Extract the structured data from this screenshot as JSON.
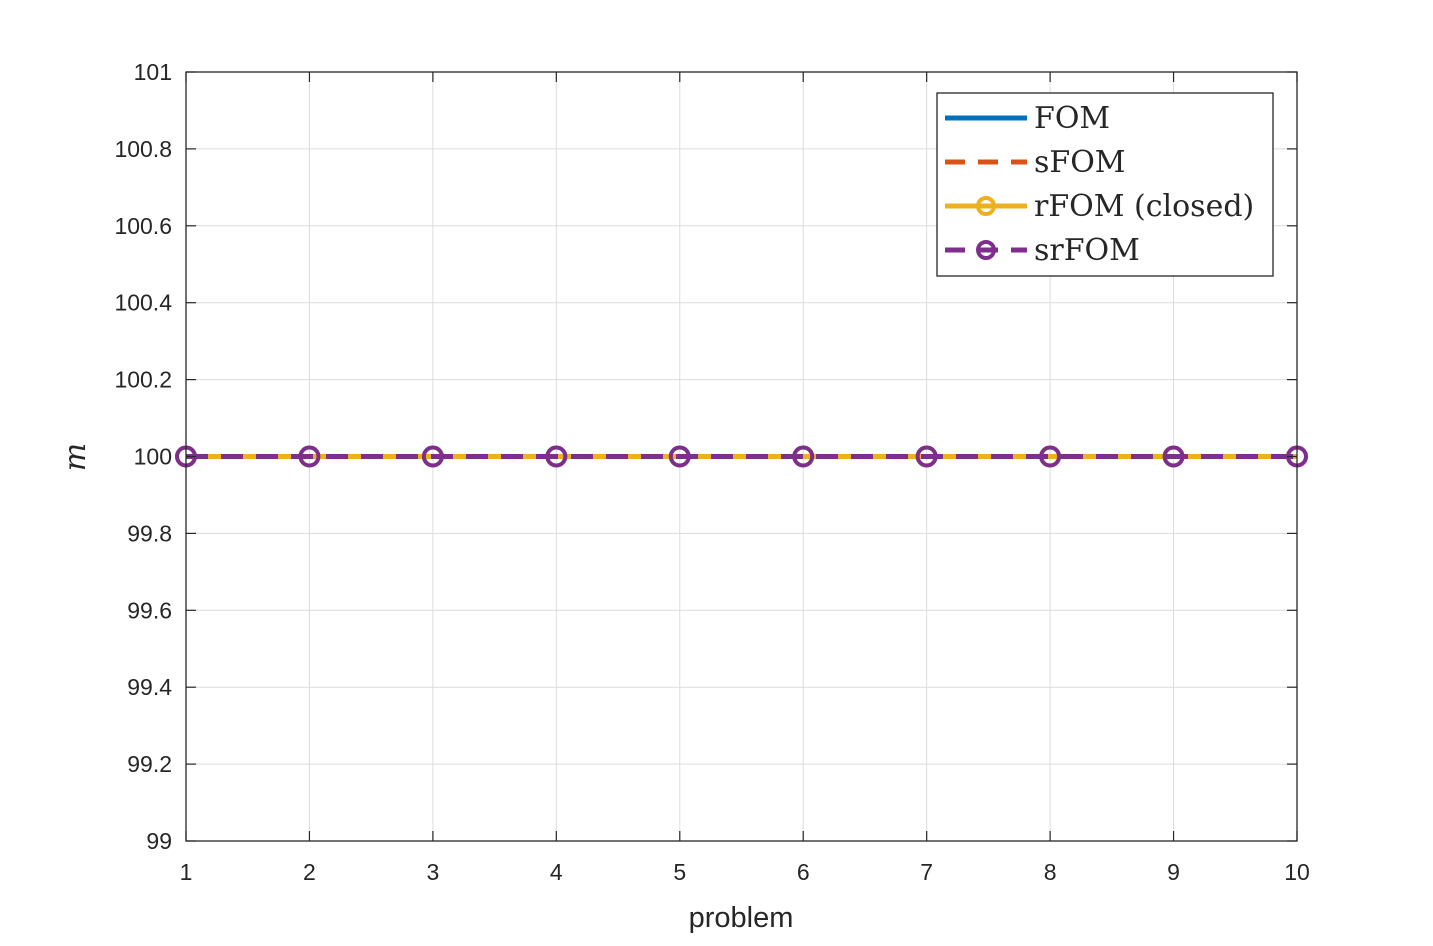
{
  "chart_data": {
    "type": "line",
    "title": "",
    "xlabel": "problem",
    "ylabel": "m",
    "xlim": [
      1,
      10
    ],
    "ylim": [
      99,
      101
    ],
    "x": [
      1,
      2,
      3,
      4,
      5,
      6,
      7,
      8,
      9,
      10
    ],
    "xticks": [
      "1",
      "2",
      "3",
      "4",
      "5",
      "6",
      "7",
      "8",
      "9",
      "10"
    ],
    "yticks": [
      "99",
      "99.2",
      "99.4",
      "99.6",
      "99.8",
      "100",
      "100.2",
      "100.4",
      "100.6",
      "100.8",
      "101"
    ],
    "grid": true,
    "legend_position": "top-right",
    "series": [
      {
        "name": "FOM",
        "values": [
          100,
          100,
          100,
          100,
          100,
          100,
          100,
          100,
          100,
          100
        ],
        "color": "#0072BD",
        "style": "solid",
        "marker": "none"
      },
      {
        "name": "sFOM",
        "values": [
          100,
          100,
          100,
          100,
          100,
          100,
          100,
          100,
          100,
          100
        ],
        "color": "#D95319",
        "style": "dashed",
        "marker": "none"
      },
      {
        "name": "rFOM (closed)",
        "values": [
          100,
          100,
          100,
          100,
          100,
          100,
          100,
          100,
          100,
          100
        ],
        "color": "#EDB120",
        "style": "solid",
        "marker": "circle"
      },
      {
        "name": "srFOM",
        "values": [
          100,
          100,
          100,
          100,
          100,
          100,
          100,
          100,
          100,
          100
        ],
        "color": "#7E2F8E",
        "style": "dashed",
        "marker": "circle"
      }
    ]
  }
}
